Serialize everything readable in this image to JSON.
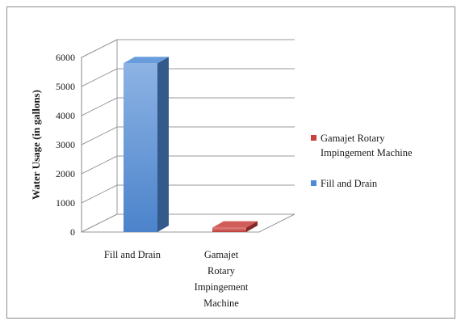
{
  "chart_data": {
    "type": "bar",
    "categories": [
      "Fill and Drain",
      "Gamajet Rotary Impingement Machine"
    ],
    "category_label_lines": [
      [
        "Fill and Drain"
      ],
      [
        "Gamajet",
        "Rotary",
        "Impingement",
        "Machine"
      ]
    ],
    "series": [
      {
        "name": "Fill and Drain",
        "color": "#4f8ad6",
        "values": [
          5800,
          null
        ]
      },
      {
        "name": "Gamajet Rotary Impingement Machine",
        "color": "#c9403c",
        "values": [
          null,
          150
        ]
      }
    ],
    "ylabel": "Water Usage (in gallons)",
    "xlabel": "",
    "title": "",
    "ylim": [
      0,
      6000
    ],
    "yticks": [
      0,
      1000,
      2000,
      3000,
      4000,
      5000,
      6000
    ],
    "grid": true,
    "legend_position": "right",
    "legend_entries": [
      {
        "label_lines": [
          "Gamajet Rotary",
          "Impingement Machine"
        ],
        "color": "#c9403c"
      },
      {
        "label_lines": [
          "Fill and Drain"
        ],
        "color": "#4f8ad6"
      }
    ],
    "style": "3d-column"
  }
}
